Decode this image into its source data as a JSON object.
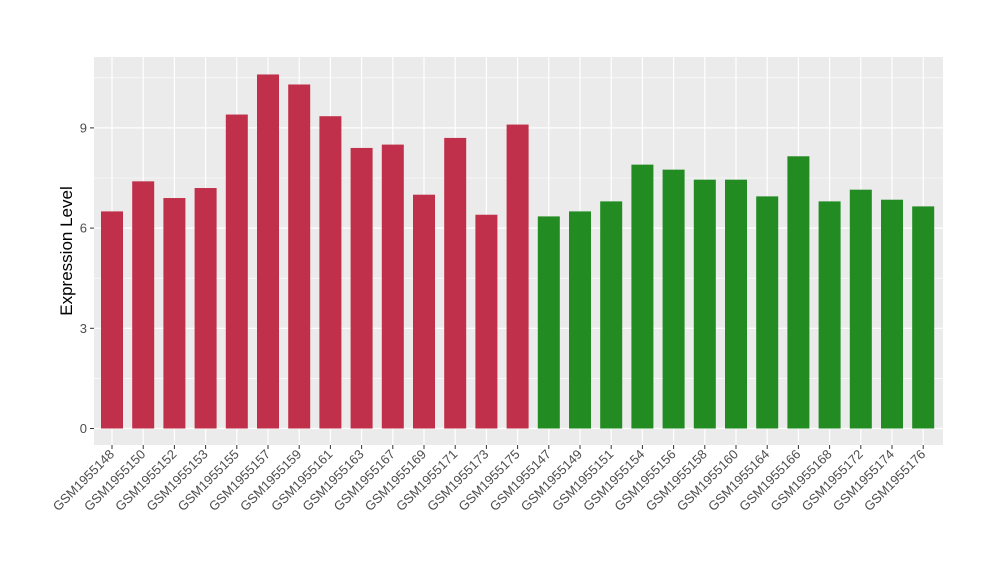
{
  "chart_data": {
    "type": "bar",
    "title": "",
    "xlabel": "",
    "ylabel": "Expression Level",
    "ylim": [
      0,
      11
    ],
    "yticks": [
      0,
      3,
      6,
      9
    ],
    "grid": true,
    "colors": {
      "group_a": "#c0304a",
      "group_b": "#228b22",
      "panel_background": "#ebebeb",
      "gridline": "#ffffff"
    },
    "categories": [
      "GSM1955148",
      "GSM1955150",
      "GSM1955152",
      "GSM1955153",
      "GSM1955155",
      "GSM1955157",
      "GSM1955159",
      "GSM1955161",
      "GSM1955163",
      "GSM1955167",
      "GSM1955169",
      "GSM1955171",
      "GSM1955173",
      "GSM1955175",
      "GSM1955147",
      "GSM1955149",
      "GSM1955151",
      "GSM1955154",
      "GSM1955156",
      "GSM1955158",
      "GSM1955160",
      "GSM1955164",
      "GSM1955166",
      "GSM1955168",
      "GSM1955172",
      "GSM1955174",
      "GSM1955176"
    ],
    "values": [
      6.5,
      7.4,
      6.9,
      7.2,
      9.4,
      10.6,
      10.3,
      9.35,
      8.4,
      8.5,
      7.0,
      8.7,
      6.4,
      9.1,
      6.35,
      6.5,
      6.8,
      7.9,
      7.75,
      7.45,
      7.45,
      6.95,
      8.15,
      6.8,
      7.15,
      6.85,
      6.65
    ],
    "groups": [
      "group_a",
      "group_a",
      "group_a",
      "group_a",
      "group_a",
      "group_a",
      "group_a",
      "group_a",
      "group_a",
      "group_a",
      "group_a",
      "group_a",
      "group_a",
      "group_a",
      "group_b",
      "group_b",
      "group_b",
      "group_b",
      "group_b",
      "group_b",
      "group_b",
      "group_b",
      "group_b",
      "group_b",
      "group_b",
      "group_b",
      "group_b"
    ]
  }
}
